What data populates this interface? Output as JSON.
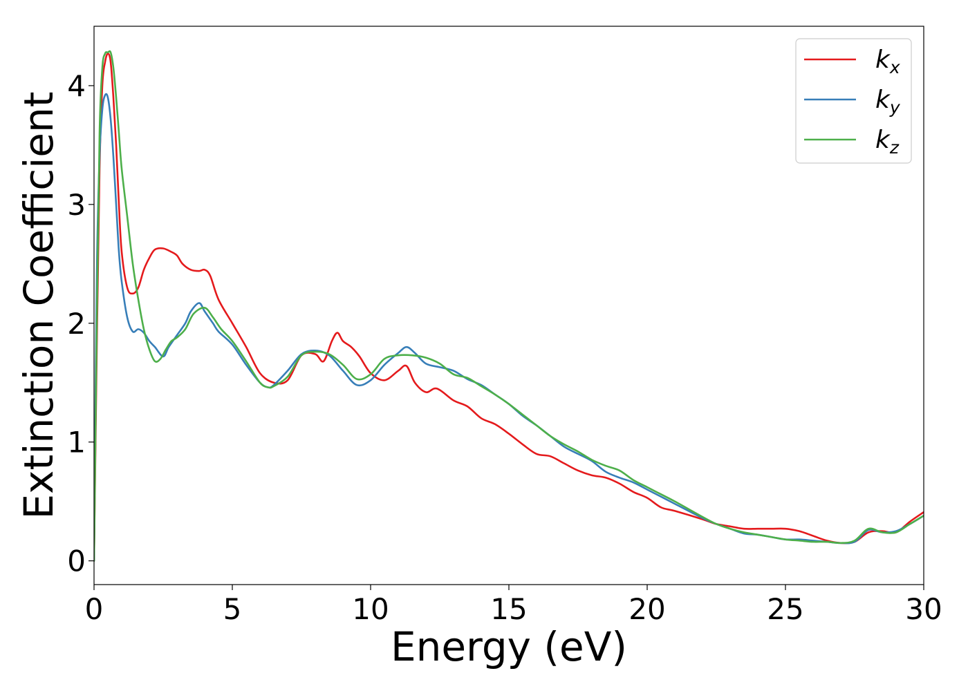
{
  "chart_data": {
    "type": "line",
    "title": "",
    "xlabel": "Energy (eV)",
    "ylabel": "Extinction Coefficient",
    "xlim": [
      0,
      30
    ],
    "ylim": [
      -0.2,
      4.5
    ],
    "xticks": [
      0,
      5,
      10,
      15,
      20,
      25,
      30
    ],
    "xtick_labels": [
      "0",
      "5",
      "10",
      "15",
      "20",
      "25",
      "30"
    ],
    "yticks": [
      0,
      1,
      2,
      3,
      4
    ],
    "ytick_labels": [
      "0",
      "1",
      "2",
      "3",
      "4"
    ],
    "grid": false,
    "legend": {
      "position": "top-right"
    },
    "series": [
      {
        "name": "k_x",
        "label_base": "k",
        "label_sub": "x",
        "color": "#e41a1c",
        "x": [
          0,
          0.1,
          0.2,
          0.3,
          0.4,
          0.5,
          0.6,
          0.7,
          0.8,
          0.9,
          1.0,
          1.2,
          1.4,
          1.6,
          1.8,
          2.0,
          2.2,
          2.5,
          2.8,
          3.0,
          3.2,
          3.5,
          3.8,
          4.0,
          4.2,
          4.5,
          5.0,
          5.5,
          6.0,
          6.5,
          7.0,
          7.5,
          8.0,
          8.3,
          8.6,
          8.8,
          9.0,
          9.3,
          9.6,
          10.0,
          10.5,
          11.0,
          11.3,
          11.6,
          12.0,
          12.4,
          13.0,
          13.5,
          14.0,
          14.5,
          15.0,
          15.5,
          16.0,
          16.5,
          17.0,
          17.5,
          18.0,
          18.5,
          19.0,
          19.5,
          20.0,
          20.5,
          21.0,
          22.0,
          22.5,
          23.0,
          23.5,
          24.0,
          24.5,
          25.0,
          25.5,
          26.0,
          26.5,
          27.0,
          27.5,
          28.0,
          28.5,
          29.0,
          29.5,
          30.0
        ],
        "y": [
          0.0,
          1.8,
          3.3,
          4.0,
          4.2,
          4.27,
          4.2,
          3.9,
          3.5,
          3.0,
          2.6,
          2.3,
          2.25,
          2.3,
          2.45,
          2.55,
          2.62,
          2.63,
          2.6,
          2.57,
          2.5,
          2.45,
          2.44,
          2.45,
          2.4,
          2.2,
          2.0,
          1.8,
          1.58,
          1.5,
          1.52,
          1.73,
          1.74,
          1.68,
          1.85,
          1.92,
          1.85,
          1.8,
          1.72,
          1.58,
          1.52,
          1.6,
          1.64,
          1.5,
          1.42,
          1.45,
          1.35,
          1.3,
          1.2,
          1.15,
          1.07,
          0.98,
          0.9,
          0.88,
          0.82,
          0.76,
          0.72,
          0.7,
          0.65,
          0.58,
          0.53,
          0.45,
          0.42,
          0.35,
          0.31,
          0.29,
          0.27,
          0.27,
          0.27,
          0.27,
          0.25,
          0.21,
          0.17,
          0.15,
          0.16,
          0.24,
          0.25,
          0.24,
          0.33,
          0.41
        ]
      },
      {
        "name": "k_y",
        "label_base": "k",
        "label_sub": "y",
        "color": "#377eb8",
        "x": [
          0,
          0.1,
          0.2,
          0.3,
          0.4,
          0.5,
          0.6,
          0.7,
          0.8,
          0.9,
          1.0,
          1.2,
          1.4,
          1.6,
          1.8,
          2.0,
          2.2,
          2.5,
          2.7,
          3.0,
          3.3,
          3.5,
          3.8,
          4.0,
          4.3,
          4.5,
          5.0,
          5.5,
          6.0,
          6.3,
          6.5,
          7.0,
          7.5,
          8.0,
          8.5,
          9.0,
          9.5,
          10.0,
          10.5,
          11.0,
          11.3,
          11.6,
          12.0,
          12.5,
          13.0,
          13.5,
          14.0,
          14.5,
          15.0,
          15.5,
          16.0,
          16.5,
          17.0,
          17.5,
          18.0,
          18.5,
          19.0,
          19.5,
          20.0,
          20.5,
          21.0,
          22.0,
          22.5,
          23.0,
          23.5,
          24.0,
          24.5,
          25.0,
          25.5,
          26.0,
          26.5,
          27.0,
          27.5,
          28.0,
          28.5,
          29.0,
          29.5,
          30.0
        ],
        "y": [
          0.0,
          2.4,
          3.4,
          3.8,
          3.92,
          3.9,
          3.72,
          3.4,
          3.0,
          2.6,
          2.35,
          2.05,
          1.93,
          1.95,
          1.92,
          1.85,
          1.8,
          1.72,
          1.8,
          1.9,
          2.0,
          2.1,
          2.17,
          2.1,
          2.0,
          1.93,
          1.82,
          1.65,
          1.5,
          1.46,
          1.48,
          1.6,
          1.74,
          1.77,
          1.73,
          1.6,
          1.48,
          1.52,
          1.65,
          1.75,
          1.8,
          1.75,
          1.66,
          1.63,
          1.6,
          1.53,
          1.48,
          1.4,
          1.32,
          1.22,
          1.14,
          1.05,
          0.96,
          0.9,
          0.84,
          0.75,
          0.7,
          0.66,
          0.6,
          0.54,
          0.48,
          0.36,
          0.31,
          0.27,
          0.23,
          0.22,
          0.2,
          0.18,
          0.18,
          0.17,
          0.16,
          0.15,
          0.16,
          0.26,
          0.24,
          0.25,
          0.31,
          0.38
        ]
      },
      {
        "name": "k_z",
        "label_base": "k",
        "label_sub": "z",
        "color": "#4daf4a",
        "x": [
          0,
          0.1,
          0.2,
          0.3,
          0.4,
          0.5,
          0.6,
          0.7,
          0.8,
          0.9,
          1.0,
          1.2,
          1.4,
          1.6,
          1.8,
          2.0,
          2.2,
          2.4,
          2.6,
          2.8,
          3.0,
          3.3,
          3.6,
          4.0,
          4.3,
          4.6,
          5.0,
          5.5,
          6.0,
          6.3,
          6.5,
          7.0,
          7.5,
          8.0,
          8.5,
          9.0,
          9.5,
          10.0,
          10.5,
          11.0,
          11.5,
          12.0,
          12.5,
          13.0,
          13.5,
          14.0,
          14.5,
          15.0,
          15.5,
          16.0,
          16.5,
          17.0,
          17.5,
          18.0,
          18.5,
          19.0,
          19.5,
          20.0,
          20.5,
          21.0,
          22.0,
          22.5,
          23.0,
          23.5,
          24.0,
          24.5,
          25.0,
          25.5,
          26.0,
          26.5,
          27.0,
          27.5,
          28.0,
          28.5,
          29.0,
          29.5,
          30.0
        ],
        "y": [
          0.0,
          2.0,
          3.6,
          4.15,
          4.27,
          4.28,
          4.28,
          4.15,
          3.9,
          3.6,
          3.3,
          2.9,
          2.5,
          2.2,
          1.95,
          1.78,
          1.68,
          1.7,
          1.78,
          1.85,
          1.88,
          1.95,
          2.08,
          2.13,
          2.05,
          1.95,
          1.85,
          1.68,
          1.5,
          1.46,
          1.47,
          1.55,
          1.73,
          1.76,
          1.74,
          1.65,
          1.53,
          1.57,
          1.7,
          1.73,
          1.73,
          1.71,
          1.66,
          1.57,
          1.54,
          1.47,
          1.4,
          1.32,
          1.23,
          1.14,
          1.05,
          0.98,
          0.92,
          0.85,
          0.8,
          0.76,
          0.68,
          0.62,
          0.56,
          0.5,
          0.37,
          0.31,
          0.27,
          0.24,
          0.22,
          0.2,
          0.18,
          0.17,
          0.16,
          0.16,
          0.15,
          0.17,
          0.27,
          0.24,
          0.24,
          0.31,
          0.38
        ]
      }
    ]
  }
}
